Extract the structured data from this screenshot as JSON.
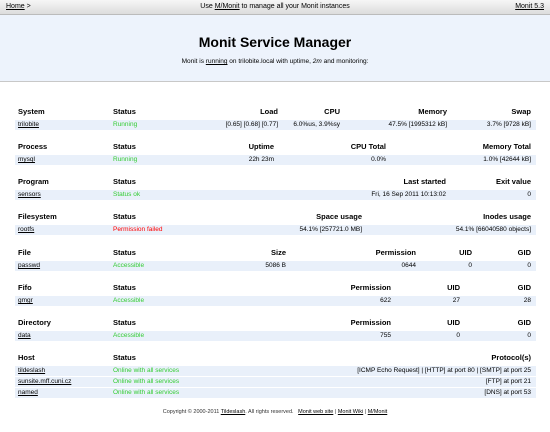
{
  "topbar": {
    "home": "Home",
    "home_sep": ">",
    "notice_prefix": "Use",
    "notice_link": "M/Monit",
    "notice_suffix": "to manage all your Monit instances",
    "version": "Monit 5.3"
  },
  "header": {
    "title": "Monit Service Manager",
    "subtitle": [
      "Monit is",
      "running",
      "on trilobite.local with uptime,",
      "2m",
      "and monitoring:"
    ]
  },
  "sections": [
    {
      "columns": [
        "System",
        "Status",
        "Load",
        "CPU",
        "Memory",
        "Swap"
      ],
      "status_color": "#33cc33",
      "rows": [
        [
          "trilobite",
          "Running",
          "[0.65] [0.68] [0.77]",
          "6.0%us, 3.9%sy",
          "47.5% [1995312 kB]",
          "3.7% [9728 kB]"
        ]
      ]
    },
    {
      "columns": [
        "Process",
        "Status",
        "Uptime",
        "CPU Total",
        "Memory Total"
      ],
      "status_color": "#33cc33",
      "rows": [
        [
          "mysql",
          "Running",
          "22h 23m",
          "0.0%",
          "1.0% [42644 kB]"
        ]
      ]
    },
    {
      "columns": [
        "Program",
        "Status",
        "Last started",
        "Exit value"
      ],
      "status_color": "#33cc33",
      "rows": [
        [
          "sensors",
          "Status ok",
          "Fri, 16 Sep 2011 10:13:02",
          "0"
        ]
      ]
    },
    {
      "columns": [
        "Filesystem",
        "Status",
        "Space usage",
        "Inodes usage"
      ],
      "status_color": "#ff0000",
      "rows": [
        [
          "rootfs",
          "Permission failed",
          "54.1% [257721.0 MB]",
          "54.1% [66040580 objects]"
        ]
      ]
    },
    {
      "columns": [
        "File",
        "Status",
        "Size",
        "Permission",
        "UID",
        "GID"
      ],
      "status_color": "#33cc33",
      "rows": [
        [
          "passwd",
          "Accessible",
          "5086 B",
          "0644",
          "0",
          "0"
        ]
      ]
    },
    {
      "columns": [
        "Fifo",
        "Status",
        "Permission",
        "UID",
        "GID"
      ],
      "status_color": "#33cc33",
      "rows": [
        [
          "gmgr",
          "Accessible",
          "622",
          "27",
          "28"
        ]
      ]
    },
    {
      "columns": [
        "Directory",
        "Status",
        "Permission",
        "UID",
        "GID"
      ],
      "status_color": "#33cc33",
      "rows": [
        [
          "data",
          "Accessible",
          "755",
          "0",
          "0"
        ]
      ]
    },
    {
      "columns": [
        "Host",
        "Status",
        "Protocol(s)"
      ],
      "status_color": "#33cc33",
      "rows": [
        [
          "tildeslash",
          "Online with all services",
          "[ICMP Echo Request]  |  [HTTP] at port 80  |  [SMTP] at port 25"
        ],
        [
          "sunsite.mff.cuni.cz",
          "Online with all services",
          "[FTP] at port 21"
        ],
        [
          "named",
          "Online with all services",
          "[DNS] at port 53"
        ]
      ]
    }
  ],
  "footer": [
    "Copyright © 2000-2011",
    "Tildeslash",
    ". All rights reserved.",
    "Monit web site",
    "|",
    "Monit Wiki",
    "|",
    "M/Monit"
  ]
}
